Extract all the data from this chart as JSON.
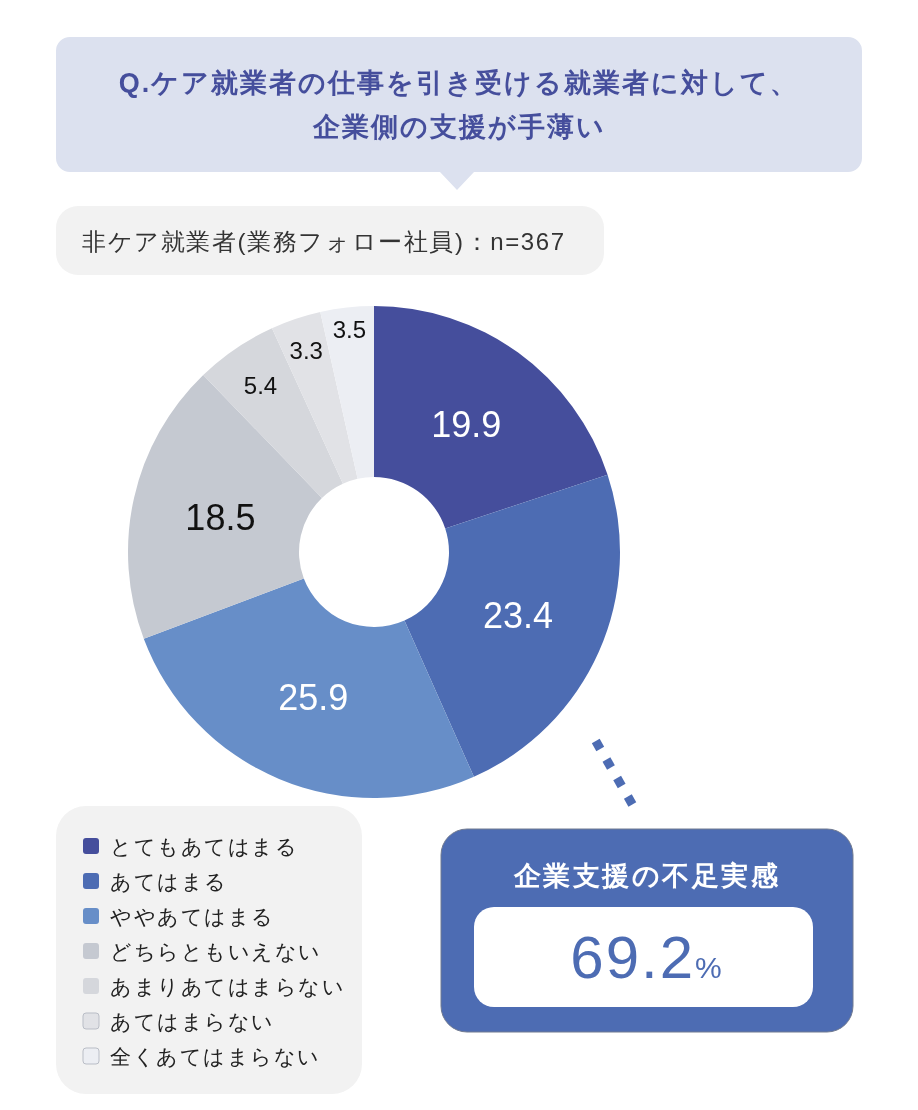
{
  "chart_data": {
    "type": "donut",
    "title": "Q.ケア就業者の仕事を引き受ける就業者に対して、企業側の支援が手薄い",
    "subtitle": "非ケア就業者(業務フォロー社員)：n=367",
    "categories": [
      "とてもあてはまる",
      "あてはまる",
      "ややあてはまる",
      "どちらともいえない",
      "あまりあてはまらない",
      "あてはまらない",
      "全くあてはまらない"
    ],
    "values": [
      19.9,
      23.4,
      25.9,
      18.5,
      5.4,
      3.3,
      3.5
    ],
    "colors": [
      "#454e9c",
      "#4d6cb3",
      "#678ec8",
      "#c5c9d1",
      "#d5d7dc",
      "#e1e2e6",
      "#eceef3"
    ],
    "data_labels": true,
    "legend": "bottom left",
    "annotations": [
      "企業支援の不足実感",
      "69.2%"
    ]
  }
}
